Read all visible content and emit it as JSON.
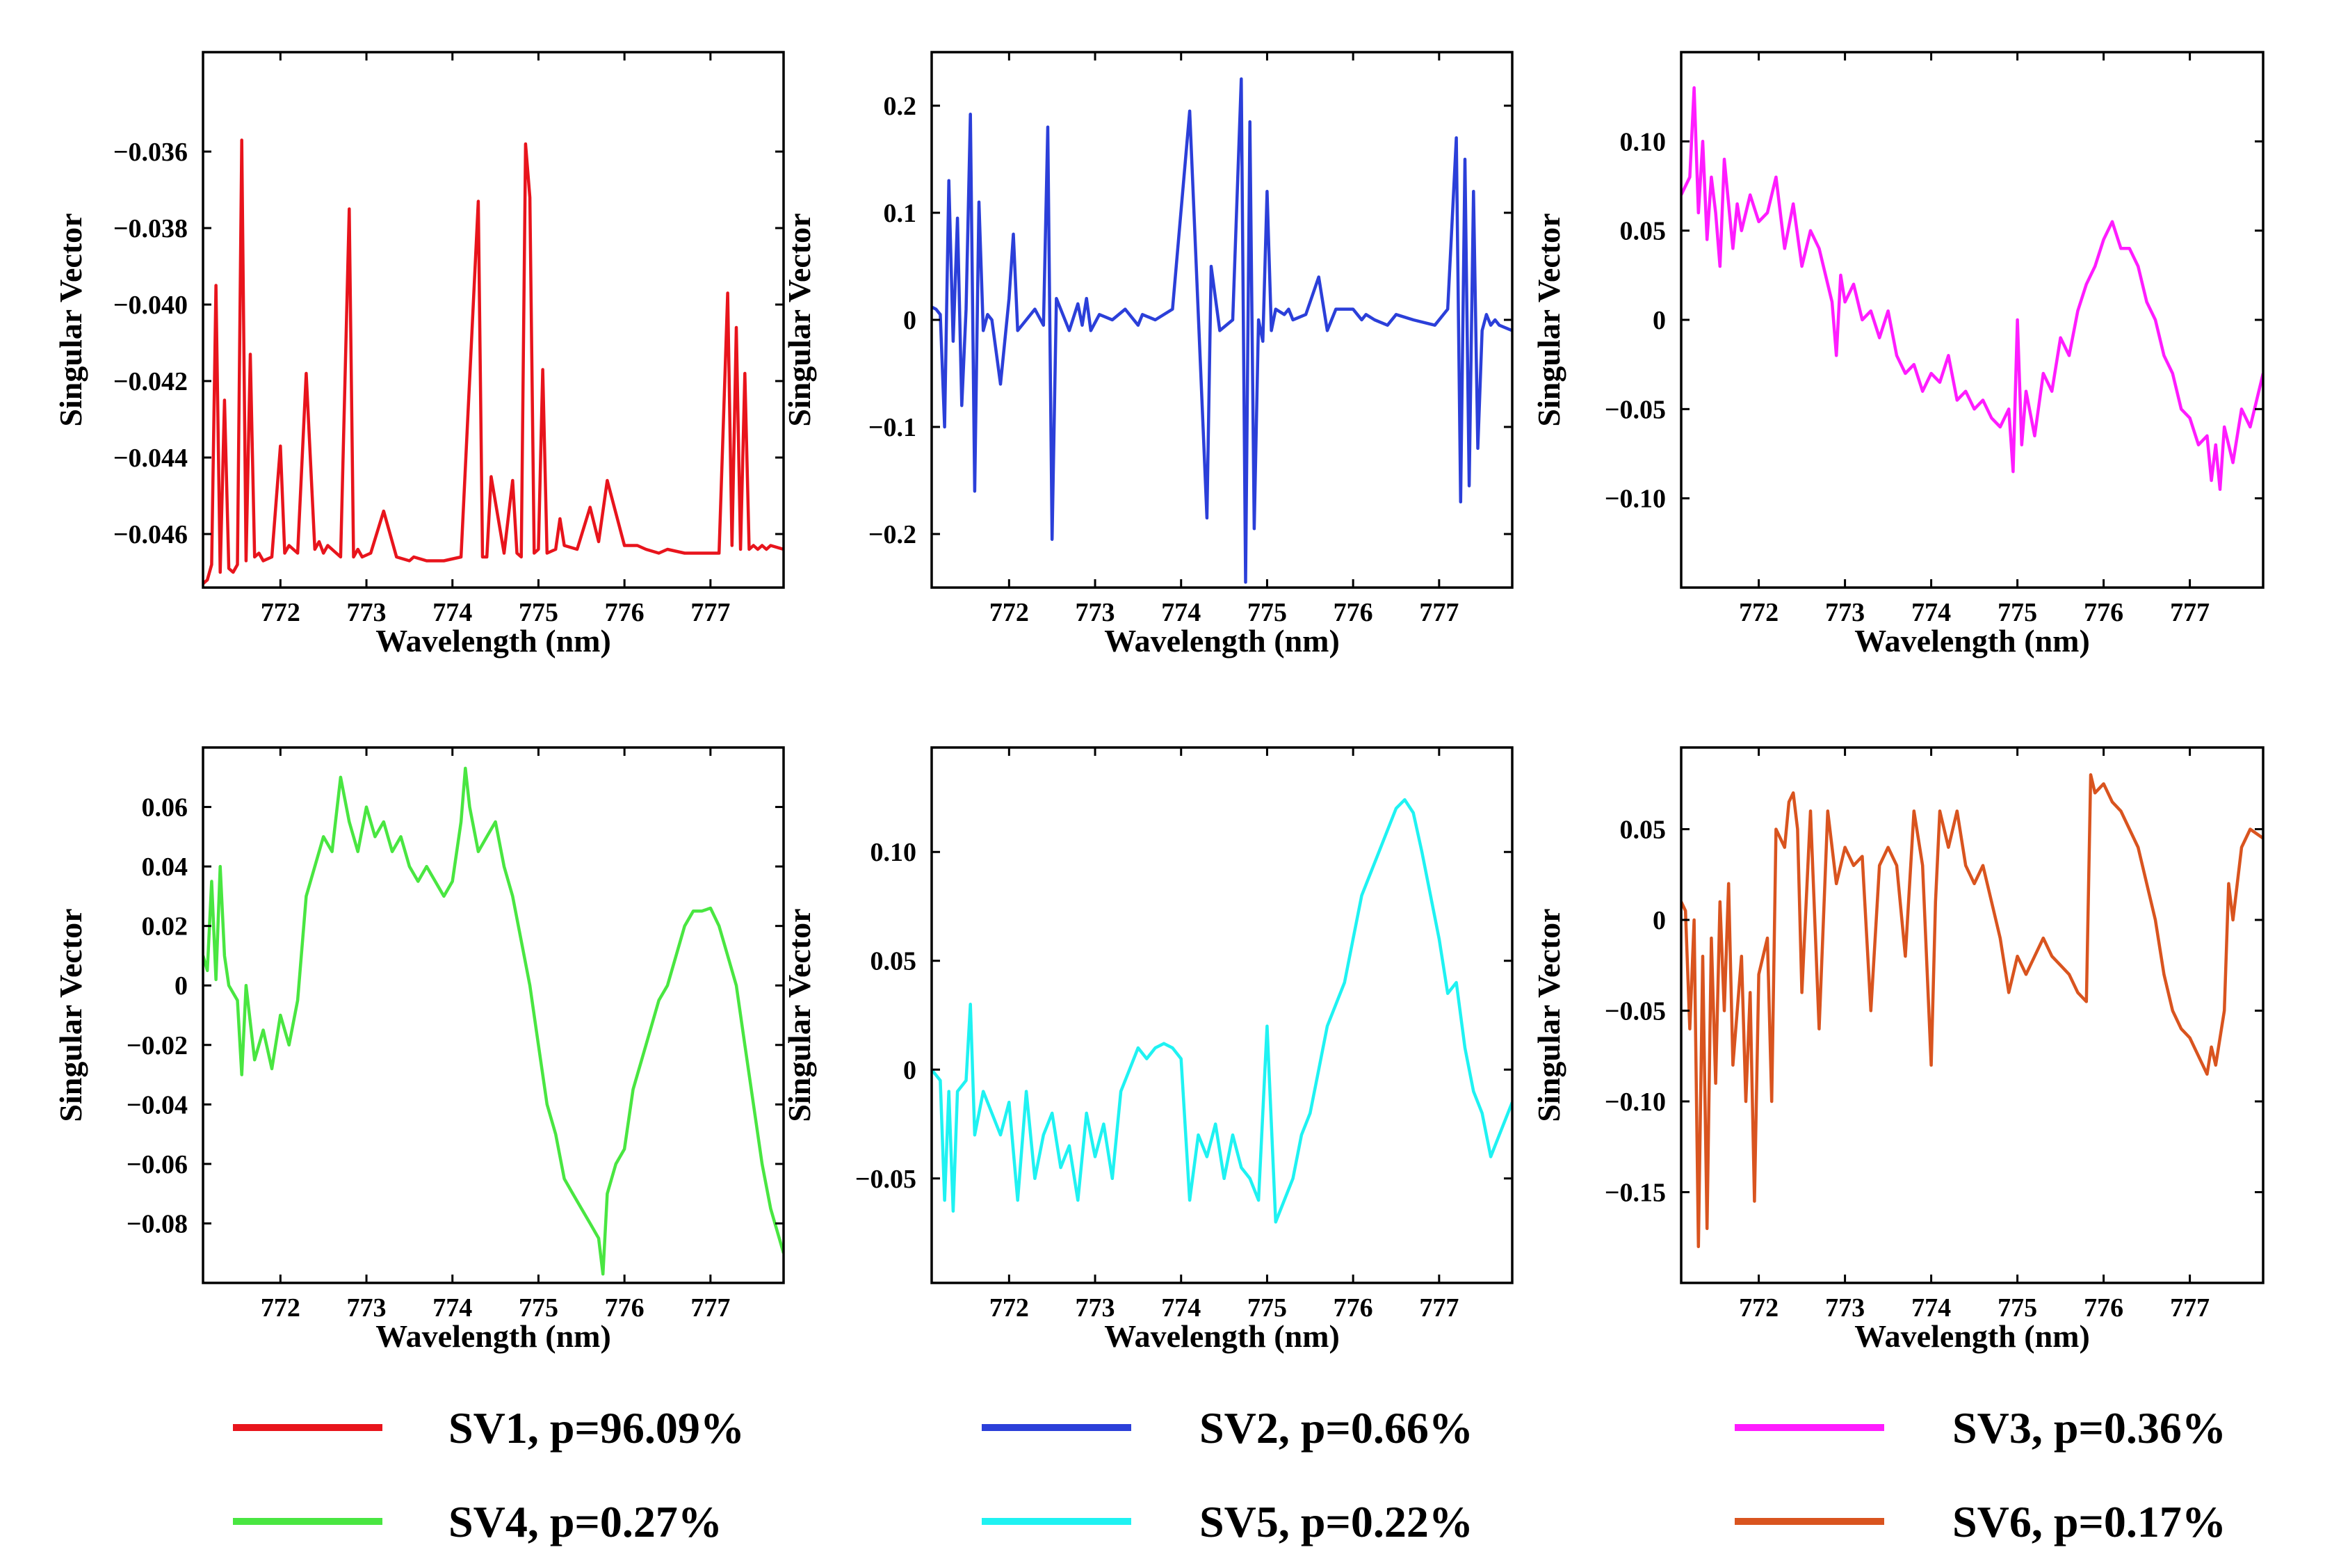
{
  "figure": {
    "legend": [
      {
        "label": "SV1, p=96.09%",
        "color": "#e8141c"
      },
      {
        "label": "SV2, p=0.66%",
        "color": "#2b3fd9"
      },
      {
        "label": "SV3, p=0.36%",
        "color": "#ff1cff"
      },
      {
        "label": "SV4, p=0.27%",
        "color": "#49e641"
      },
      {
        "label": "SV5, p=0.22%",
        "color": "#1ff2f2"
      },
      {
        "label": "SV6, p=0.17%",
        "color": "#d9541f"
      }
    ]
  },
  "chart_data": [
    {
      "type": "line",
      "name": "SV1",
      "color": "#e8141c",
      "xlabel": "Wavelength (nm)",
      "ylabel": "Singular Vector",
      "xlim": [
        771.1,
        777.85
      ],
      "ylim": [
        -0.0474,
        -0.0334
      ],
      "xticks": [
        "772",
        "773",
        "774",
        "775",
        "776",
        "777"
      ],
      "yticks": [
        {
          "v": -0.036,
          "label": "−0.036"
        },
        {
          "v": -0.038,
          "label": "−0.038"
        },
        {
          "v": -0.04,
          "label": "−0.040"
        },
        {
          "v": -0.042,
          "label": "−0.042"
        },
        {
          "v": -0.044,
          "label": "−0.044"
        },
        {
          "v": -0.046,
          "label": "−0.046"
        }
      ],
      "x": [
        771.1,
        771.15,
        771.2,
        771.25,
        771.3,
        771.35,
        771.4,
        771.45,
        771.5,
        771.55,
        771.6,
        771.65,
        771.7,
        771.75,
        771.8,
        771.9,
        772.0,
        772.05,
        772.1,
        772.2,
        772.3,
        772.4,
        772.45,
        772.5,
        772.55,
        772.7,
        772.8,
        772.85,
        772.9,
        772.95,
        773.05,
        773.2,
        773.35,
        773.5,
        773.55,
        773.7,
        773.9,
        774.1,
        774.3,
        774.35,
        774.4,
        774.45,
        774.6,
        774.7,
        774.75,
        774.8,
        774.85,
        774.9,
        774.95,
        775.0,
        775.05,
        775.1,
        775.2,
        775.25,
        775.3,
        775.45,
        775.6,
        775.7,
        775.8,
        776.0,
        776.05,
        776.1,
        776.15,
        776.25,
        776.4,
        776.5,
        776.7,
        776.95,
        777.1,
        777.2,
        777.25,
        777.3,
        777.35,
        777.4,
        777.45,
        777.5,
        777.55,
        777.6,
        777.65,
        777.7,
        777.85
      ],
      "values": [
        -0.0473,
        -0.0472,
        -0.0468,
        -0.0395,
        -0.047,
        -0.0425,
        -0.0469,
        -0.047,
        -0.0468,
        -0.0357,
        -0.0467,
        -0.0413,
        -0.0466,
        -0.0465,
        -0.0467,
        -0.0466,
        -0.0437,
        -0.0465,
        -0.0463,
        -0.0465,
        -0.0418,
        -0.0464,
        -0.0462,
        -0.0465,
        -0.0463,
        -0.0466,
        -0.0375,
        -0.0466,
        -0.0464,
        -0.0466,
        -0.0465,
        -0.0454,
        -0.0466,
        -0.0467,
        -0.0466,
        -0.0467,
        -0.0467,
        -0.0466,
        -0.0373,
        -0.0466,
        -0.0466,
        -0.0445,
        -0.0465,
        -0.0446,
        -0.0465,
        -0.0466,
        -0.0358,
        -0.0372,
        -0.0465,
        -0.0464,
        -0.0417,
        -0.0465,
        -0.0464,
        -0.0456,
        -0.0463,
        -0.0464,
        -0.0453,
        -0.0462,
        -0.0446,
        -0.0463,
        -0.0463,
        -0.0463,
        -0.0463,
        -0.0464,
        -0.0465,
        -0.0464,
        -0.0465,
        -0.0465,
        -0.0465,
        -0.0397,
        -0.0463,
        -0.0406,
        -0.0464,
        -0.0418,
        -0.0464,
        -0.0463,
        -0.0464,
        -0.0463,
        -0.0464,
        -0.0463,
        -0.0464
      ]
    },
    {
      "type": "line",
      "name": "SV2",
      "color": "#2b3fd9",
      "xlabel": "Wavelength (nm)",
      "ylabel": "Singular Vector",
      "xlim": [
        771.1,
        777.85
      ],
      "ylim": [
        -0.25,
        0.25
      ],
      "xticks": [
        "772",
        "773",
        "774",
        "775",
        "776",
        "777"
      ],
      "yticks": [
        {
          "v": 0.2,
          "label": "0.2"
        },
        {
          "v": 0.1,
          "label": "0.1"
        },
        {
          "v": 0,
          "label": "0"
        },
        {
          "v": -0.1,
          "label": "−0.1"
        },
        {
          "v": -0.2,
          "label": "−0.2"
        }
      ],
      "x": [
        771.1,
        771.15,
        771.2,
        771.25,
        771.3,
        771.35,
        771.4,
        771.45,
        771.5,
        771.55,
        771.6,
        771.65,
        771.7,
        771.75,
        771.8,
        771.9,
        772.0,
        772.05,
        772.1,
        772.2,
        772.3,
        772.4,
        772.45,
        772.5,
        772.55,
        772.7,
        772.8,
        772.85,
        772.9,
        772.95,
        773.05,
        773.2,
        773.35,
        773.5,
        773.55,
        773.7,
        773.9,
        774.1,
        774.3,
        774.35,
        774.4,
        774.45,
        774.6,
        774.7,
        774.75,
        774.8,
        774.85,
        774.9,
        774.95,
        775.0,
        775.05,
        775.1,
        775.2,
        775.25,
        775.3,
        775.45,
        775.6,
        775.7,
        775.8,
        776.0,
        776.05,
        776.1,
        776.15,
        776.25,
        776.4,
        776.5,
        776.7,
        776.95,
        777.1,
        777.2,
        777.25,
        777.3,
        777.35,
        777.4,
        777.45,
        777.5,
        777.55,
        777.6,
        777.65,
        777.7,
        777.85
      ],
      "values": [
        0.012,
        0.01,
        0.005,
        -0.1,
        0.13,
        -0.02,
        0.095,
        -0.08,
        0.01,
        0.192,
        -0.16,
        0.11,
        -0.01,
        0.005,
        0.0,
        -0.06,
        0.02,
        0.08,
        -0.01,
        0.0,
        0.01,
        -0.005,
        0.18,
        -0.205,
        0.02,
        -0.01,
        0.015,
        -0.005,
        0.02,
        -0.01,
        0.005,
        0.0,
        0.01,
        -0.005,
        0.005,
        0.0,
        0.01,
        0.195,
        -0.185,
        0.05,
        0.02,
        -0.01,
        0.0,
        0.225,
        -0.245,
        0.185,
        -0.195,
        0.0,
        -0.02,
        0.12,
        -0.01,
        0.01,
        0.005,
        0.01,
        0.0,
        0.005,
        0.04,
        -0.01,
        0.01,
        0.01,
        0.005,
        0.0,
        0.005,
        0.0,
        -0.005,
        0.005,
        0.0,
        -0.005,
        0.01,
        0.17,
        -0.17,
        0.15,
        -0.155,
        0.12,
        -0.12,
        -0.01,
        0.005,
        -0.005,
        0.0,
        -0.005,
        -0.01
      ]
    },
    {
      "type": "line",
      "name": "SV3",
      "color": "#ff1cff",
      "xlabel": "Wavelength (nm)",
      "ylabel": "Singular Vector",
      "xlim": [
        771.1,
        777.85
      ],
      "ylim": [
        -0.15,
        0.15
      ],
      "xticks": [
        "772",
        "773",
        "774",
        "775",
        "776",
        "777"
      ],
      "yticks": [
        {
          "v": 0.1,
          "label": "0.10"
        },
        {
          "v": 0.05,
          "label": "0.05"
        },
        {
          "v": 0,
          "label": "0"
        },
        {
          "v": -0.05,
          "label": "−0.05"
        },
        {
          "v": -0.1,
          "label": "−0.10"
        }
      ],
      "x": [
        771.1,
        771.2,
        771.25,
        771.3,
        771.35,
        771.4,
        771.45,
        771.5,
        771.55,
        771.6,
        771.7,
        771.75,
        771.8,
        771.9,
        772.0,
        772.1,
        772.2,
        772.3,
        772.4,
        772.5,
        772.6,
        772.7,
        772.8,
        772.85,
        772.9,
        772.95,
        773.0,
        773.1,
        773.2,
        773.3,
        773.4,
        773.5,
        773.6,
        773.7,
        773.8,
        773.9,
        774.0,
        774.1,
        774.2,
        774.3,
        774.4,
        774.5,
        774.6,
        774.7,
        774.8,
        774.9,
        774.95,
        775.0,
        775.05,
        775.1,
        775.2,
        775.3,
        775.4,
        775.5,
        775.6,
        775.7,
        775.8,
        775.9,
        776.0,
        776.1,
        776.2,
        776.3,
        776.4,
        776.5,
        776.6,
        776.7,
        776.8,
        776.9,
        777.0,
        777.1,
        777.2,
        777.25,
        777.3,
        777.35,
        777.4,
        777.5,
        777.6,
        777.7,
        777.85
      ],
      "values": [
        0.07,
        0.08,
        0.13,
        0.06,
        0.1,
        0.045,
        0.08,
        0.06,
        0.03,
        0.09,
        0.04,
        0.065,
        0.05,
        0.07,
        0.055,
        0.06,
        0.08,
        0.04,
        0.065,
        0.03,
        0.05,
        0.04,
        0.02,
        0.01,
        -0.02,
        0.025,
        0.01,
        0.02,
        0.0,
        0.005,
        -0.01,
        0.005,
        -0.02,
        -0.03,
        -0.025,
        -0.04,
        -0.03,
        -0.035,
        -0.02,
        -0.045,
        -0.04,
        -0.05,
        -0.045,
        -0.055,
        -0.06,
        -0.05,
        -0.085,
        0.0,
        -0.07,
        -0.04,
        -0.065,
        -0.03,
        -0.04,
        -0.01,
        -0.02,
        0.005,
        0.02,
        0.03,
        0.045,
        0.055,
        0.04,
        0.04,
        0.03,
        0.01,
        0.0,
        -0.02,
        -0.03,
        -0.05,
        -0.055,
        -0.07,
        -0.065,
        -0.09,
        -0.07,
        -0.095,
        -0.06,
        -0.08,
        -0.05,
        -0.06,
        -0.03
      ]
    },
    {
      "type": "line",
      "name": "SV4",
      "color": "#49e641",
      "xlabel": "Wavelength (nm)",
      "ylabel": "Singular Vector",
      "xlim": [
        771.1,
        777.85
      ],
      "ylim": [
        -0.1,
        0.08
      ],
      "xticks": [
        "772",
        "773",
        "774",
        "775",
        "776",
        "777"
      ],
      "yticks": [
        {
          "v": 0.06,
          "label": "0.06"
        },
        {
          "v": 0.04,
          "label": "0.04"
        },
        {
          "v": 0.02,
          "label": "0.02"
        },
        {
          "v": 0,
          "label": "0"
        },
        {
          "v": -0.02,
          "label": "−0.02"
        },
        {
          "v": -0.04,
          "label": "−0.04"
        },
        {
          "v": -0.06,
          "label": "−0.06"
        },
        {
          "v": -0.08,
          "label": "−0.08"
        }
      ],
      "x": [
        771.1,
        771.15,
        771.2,
        771.25,
        771.3,
        771.35,
        771.4,
        771.5,
        771.55,
        771.6,
        771.7,
        771.8,
        771.9,
        772.0,
        772.1,
        772.2,
        772.3,
        772.4,
        772.5,
        772.6,
        772.7,
        772.8,
        772.9,
        773.0,
        773.1,
        773.2,
        773.3,
        773.4,
        773.5,
        773.6,
        773.7,
        773.8,
        773.9,
        774.0,
        774.1,
        774.15,
        774.2,
        774.3,
        774.4,
        774.5,
        774.6,
        774.7,
        774.8,
        774.9,
        775.0,
        775.1,
        775.2,
        775.3,
        775.4,
        775.5,
        775.6,
        775.7,
        775.75,
        775.8,
        775.9,
        776.0,
        776.1,
        776.2,
        776.3,
        776.4,
        776.5,
        776.6,
        776.7,
        776.8,
        776.9,
        777.0,
        777.1,
        777.2,
        777.3,
        777.4,
        777.5,
        777.6,
        777.7,
        777.85
      ],
      "values": [
        0.01,
        0.005,
        0.035,
        0.002,
        0.04,
        0.01,
        0.0,
        -0.005,
        -0.03,
        0.0,
        -0.025,
        -0.015,
        -0.028,
        -0.01,
        -0.02,
        -0.005,
        0.03,
        0.04,
        0.05,
        0.045,
        0.07,
        0.055,
        0.045,
        0.06,
        0.05,
        0.055,
        0.045,
        0.05,
        0.04,
        0.035,
        0.04,
        0.035,
        0.03,
        0.035,
        0.055,
        0.073,
        0.06,
        0.045,
        0.05,
        0.055,
        0.04,
        0.03,
        0.015,
        0.0,
        -0.02,
        -0.04,
        -0.05,
        -0.065,
        -0.07,
        -0.075,
        -0.08,
        -0.085,
        -0.097,
        -0.07,
        -0.06,
        -0.055,
        -0.035,
        -0.025,
        -0.015,
        -0.005,
        0.0,
        0.01,
        0.02,
        0.025,
        0.025,
        0.026,
        0.02,
        0.01,
        0.0,
        -0.02,
        -0.04,
        -0.06,
        -0.075,
        -0.09
      ]
    },
    {
      "type": "line",
      "name": "SV5",
      "color": "#1ff2f2",
      "xlabel": "Wavelength (nm)",
      "ylabel": "Singular Vector",
      "xlim": [
        771.1,
        777.85
      ],
      "ylim": [
        -0.098,
        0.148
      ],
      "xticks": [
        "772",
        "773",
        "774",
        "775",
        "776",
        "777"
      ],
      "yticks": [
        {
          "v": 0.1,
          "label": "0.10"
        },
        {
          "v": 0.05,
          "label": "0.05"
        },
        {
          "v": 0,
          "label": "0"
        },
        {
          "v": -0.05,
          "label": "−0.05"
        }
      ],
      "x": [
        771.1,
        771.2,
        771.25,
        771.3,
        771.35,
        771.4,
        771.5,
        771.55,
        771.6,
        771.7,
        771.8,
        771.9,
        772.0,
        772.1,
        772.2,
        772.3,
        772.4,
        772.5,
        772.6,
        772.7,
        772.8,
        772.9,
        773.0,
        773.1,
        773.2,
        773.3,
        773.4,
        773.5,
        773.6,
        773.7,
        773.8,
        773.9,
        774.0,
        774.1,
        774.2,
        774.3,
        774.4,
        774.5,
        774.6,
        774.7,
        774.8,
        774.9,
        775.0,
        775.1,
        775.2,
        775.3,
        775.4,
        775.5,
        775.6,
        775.7,
        775.8,
        775.9,
        776.0,
        776.1,
        776.2,
        776.3,
        776.4,
        776.5,
        776.6,
        776.7,
        776.8,
        776.9,
        777.0,
        777.1,
        777.2,
        777.3,
        777.4,
        777.5,
        777.6,
        777.7,
        777.85
      ],
      "values": [
        0.0,
        -0.005,
        -0.06,
        -0.01,
        -0.065,
        -0.01,
        -0.005,
        0.03,
        -0.03,
        -0.01,
        -0.02,
        -0.03,
        -0.015,
        -0.06,
        -0.01,
        -0.05,
        -0.03,
        -0.02,
        -0.045,
        -0.035,
        -0.06,
        -0.02,
        -0.04,
        -0.025,
        -0.05,
        -0.01,
        0.0,
        0.01,
        0.005,
        0.01,
        0.012,
        0.01,
        0.005,
        -0.06,
        -0.03,
        -0.04,
        -0.025,
        -0.05,
        -0.03,
        -0.045,
        -0.05,
        -0.06,
        0.02,
        -0.07,
        -0.06,
        -0.05,
        -0.03,
        -0.02,
        0.0,
        0.02,
        0.03,
        0.04,
        0.06,
        0.08,
        0.09,
        0.1,
        0.11,
        0.12,
        0.124,
        0.118,
        0.1,
        0.08,
        0.06,
        0.035,
        0.04,
        0.01,
        -0.01,
        -0.02,
        -0.04,
        -0.03,
        -0.015
      ]
    },
    {
      "type": "line",
      "name": "SV6",
      "color": "#d9541f",
      "xlabel": "Wavelength (nm)",
      "ylabel": "Singular Vector",
      "xlim": [
        771.1,
        777.85
      ],
      "ylim": [
        -0.2,
        0.095
      ],
      "xticks": [
        "772",
        "773",
        "774",
        "775",
        "776",
        "777"
      ],
      "yticks": [
        {
          "v": 0.05,
          "label": "0.05"
        },
        {
          "v": 0,
          "label": "0"
        },
        {
          "v": -0.05,
          "label": "−0.05"
        },
        {
          "v": -0.1,
          "label": "−0.10"
        },
        {
          "v": -0.15,
          "label": "−0.15"
        }
      ],
      "x": [
        771.1,
        771.15,
        771.2,
        771.25,
        771.3,
        771.35,
        771.4,
        771.45,
        771.5,
        771.55,
        771.6,
        771.65,
        771.7,
        771.8,
        771.85,
        771.9,
        771.95,
        772.0,
        772.1,
        772.15,
        772.2,
        772.3,
        772.35,
        772.4,
        772.45,
        772.5,
        772.6,
        772.7,
        772.8,
        772.9,
        773.0,
        773.1,
        773.2,
        773.3,
        773.4,
        773.5,
        773.6,
        773.7,
        773.8,
        773.9,
        774.0,
        774.05,
        774.1,
        774.2,
        774.3,
        774.4,
        774.5,
        774.6,
        774.7,
        774.8,
        774.9,
        775.0,
        775.1,
        775.2,
        775.3,
        775.4,
        775.5,
        775.6,
        775.7,
        775.8,
        775.85,
        775.9,
        776.0,
        776.1,
        776.2,
        776.3,
        776.4,
        776.5,
        776.6,
        776.7,
        776.8,
        776.9,
        777.0,
        777.1,
        777.2,
        777.25,
        777.3,
        777.4,
        777.45,
        777.5,
        777.6,
        777.7,
        777.85
      ],
      "values": [
        0.01,
        0.005,
        -0.06,
        0.0,
        -0.18,
        -0.02,
        -0.17,
        -0.01,
        -0.09,
        0.01,
        -0.05,
        0.02,
        -0.08,
        -0.02,
        -0.1,
        -0.04,
        -0.155,
        -0.03,
        -0.01,
        -0.1,
        0.05,
        0.04,
        0.065,
        0.07,
        0.05,
        -0.04,
        0.06,
        -0.06,
        0.06,
        0.02,
        0.04,
        0.03,
        0.035,
        -0.05,
        0.03,
        0.04,
        0.03,
        -0.02,
        0.06,
        0.03,
        -0.08,
        0.01,
        0.06,
        0.04,
        0.06,
        0.03,
        0.02,
        0.03,
        0.01,
        -0.01,
        -0.04,
        -0.02,
        -0.03,
        -0.02,
        -0.01,
        -0.02,
        -0.025,
        -0.03,
        -0.04,
        -0.045,
        0.08,
        0.07,
        0.075,
        0.065,
        0.06,
        0.05,
        0.04,
        0.02,
        0.0,
        -0.03,
        -0.05,
        -0.06,
        -0.065,
        -0.075,
        -0.085,
        -0.07,
        -0.08,
        -0.05,
        0.02,
        0.0,
        0.04,
        0.05,
        0.045
      ]
    }
  ]
}
